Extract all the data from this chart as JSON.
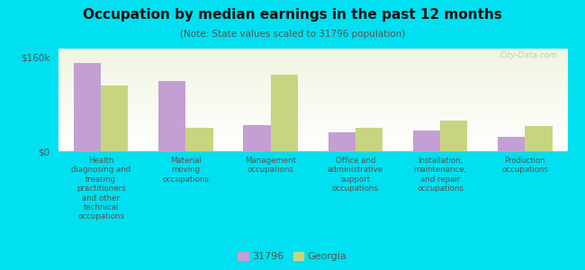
{
  "title": "Occupation by median earnings in the past 12 months",
  "subtitle": "(Note: State values scaled to 31796 population)",
  "categories": [
    "Health\ndiagnosing and\ntreating\npractitioners\nand other\ntechnical\noccupations",
    "Material\nmoving\noccupations",
    "Management\noccupations",
    "Office and\nadministrative\nsupport\noccupations",
    "Installation,\nmaintenance,\nand repair\noccupations",
    "Production\noccupations"
  ],
  "values_31796": [
    150000,
    120000,
    45000,
    32000,
    36000,
    25000
  ],
  "values_georgia": [
    112000,
    40000,
    130000,
    40000,
    52000,
    43000
  ],
  "color_31796": "#c49fd4",
  "color_georgia": "#c8d480",
  "ylim": [
    0,
    175000
  ],
  "yticks": [
    0,
    160000
  ],
  "ytick_labels": [
    "$0",
    "$160k"
  ],
  "plot_bg_top": "#f0f5e0",
  "plot_bg_bottom": "#ffffff",
  "outer_background": "#00e0f0",
  "legend_labels": [
    "31796",
    "Georgia"
  ],
  "bar_width": 0.32,
  "watermark": "City-Data.com"
}
